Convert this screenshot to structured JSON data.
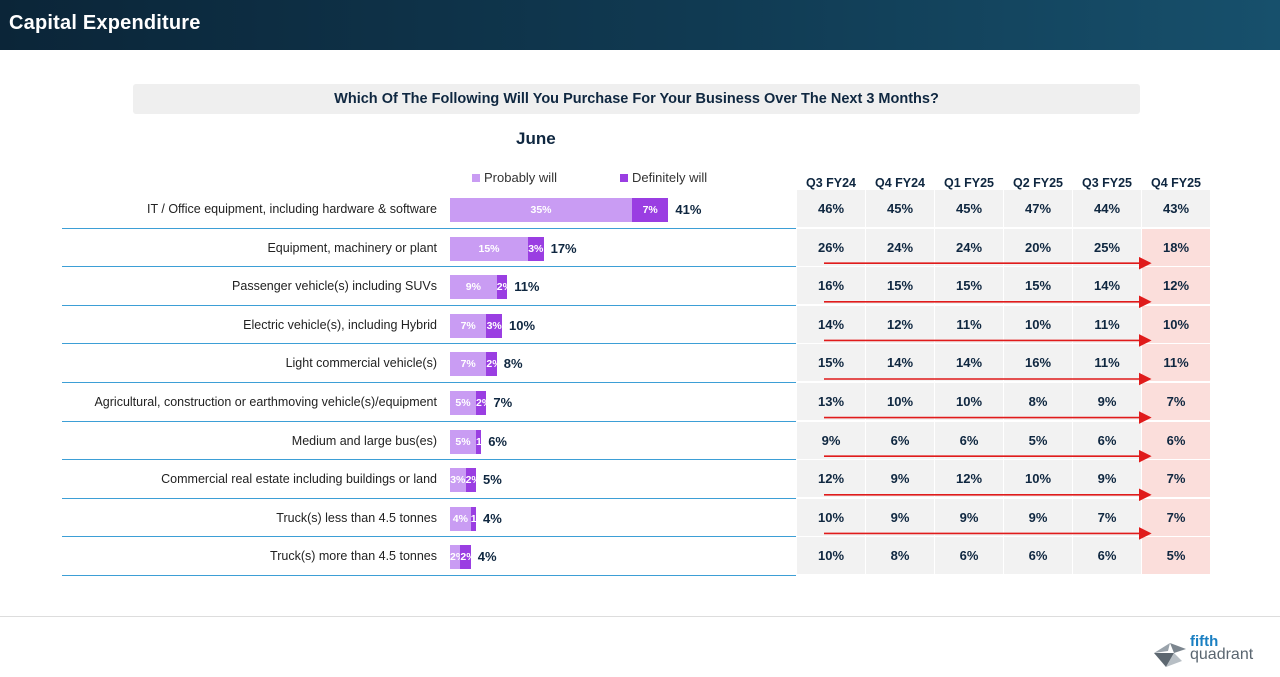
{
  "header": {
    "title": "Capital Expenditure"
  },
  "question": "Which Of The Following Will You Purchase For Your Business Over The Next 3 Months?",
  "month": "June",
  "legend": {
    "probably": "Probably will",
    "definitely": "Definitely will"
  },
  "colors": {
    "probably": "#c99cf3",
    "definitely": "#9a3ee2",
    "arrow": "#e01b1b",
    "highlight": "#fbdedb",
    "cell": "#f2f2f2",
    "rule": "#3d9fd6"
  },
  "chart_data": {
    "type": "bar",
    "orientation": "horizontal",
    "stacked": true,
    "categories": [
      "IT / Office equipment, including hardware & software",
      "Equipment, machinery or plant",
      "Passenger vehicle(s) including SUVs",
      "Electric vehicle(s), including Hybrid",
      "Light commercial vehicle(s)",
      "Agricultural, construction or earthmoving vehicle(s)/equipment",
      "Medium and large bus(es)",
      "Commercial real estate including buildings or land",
      "Truck(s) less than 4.5 tonnes",
      "Truck(s) more than 4.5 tonnes"
    ],
    "series": [
      {
        "name": "Probably will",
        "values": [
          35,
          15,
          9,
          7,
          7,
          5,
          5,
          3,
          4,
          2
        ],
        "labels": [
          "35%",
          "15%",
          "9%",
          "7%",
          "7%",
          "5%",
          "5%",
          "3%",
          "4%",
          "2%"
        ]
      },
      {
        "name": "Definitely will",
        "values": [
          7,
          3,
          2,
          3,
          2,
          2,
          1,
          2,
          1,
          2
        ],
        "labels": [
          "7%",
          "3%",
          "2%",
          "3%",
          "2%",
          "2%",
          "1%",
          "2%",
          "1%",
          "2%"
        ]
      }
    ],
    "totals": [
      "41%",
      "17%",
      "11%",
      "10%",
      "8%",
      "7%",
      "6%",
      "5%",
      "4%",
      "4%"
    ]
  },
  "trend_table": {
    "columns": [
      "Q3 FY24",
      "Q4 FY24",
      "Q1 FY25",
      "Q2 FY25",
      "Q3 FY25",
      "Q4 FY25"
    ],
    "rows": [
      [
        "46%",
        "45%",
        "45%",
        "47%",
        "44%",
        "43%"
      ],
      [
        "26%",
        "24%",
        "24%",
        "20%",
        "25%",
        "18%"
      ],
      [
        "16%",
        "15%",
        "15%",
        "15%",
        "14%",
        "12%"
      ],
      [
        "14%",
        "12%",
        "11%",
        "10%",
        "11%",
        "10%"
      ],
      [
        "15%",
        "14%",
        "14%",
        "16%",
        "11%",
        "11%"
      ],
      [
        "13%",
        "10%",
        "10%",
        "8%",
        "9%",
        "7%"
      ],
      [
        "9%",
        "6%",
        "6%",
        "5%",
        "6%",
        "6%"
      ],
      [
        "12%",
        "9%",
        "12%",
        "10%",
        "9%",
        "7%"
      ],
      [
        "10%",
        "9%",
        "9%",
        "9%",
        "7%",
        "7%"
      ],
      [
        "10%",
        "8%",
        "6%",
        "6%",
        "6%",
        "5%"
      ]
    ],
    "highlighted_rows": [
      1,
      2,
      3,
      4,
      5,
      6,
      7,
      8,
      9
    ],
    "trend_arrow_rows": [
      1,
      2,
      3,
      4,
      5,
      6,
      7,
      8
    ]
  },
  "logo": {
    "line1": "fifth",
    "line2": "quadrant"
  }
}
